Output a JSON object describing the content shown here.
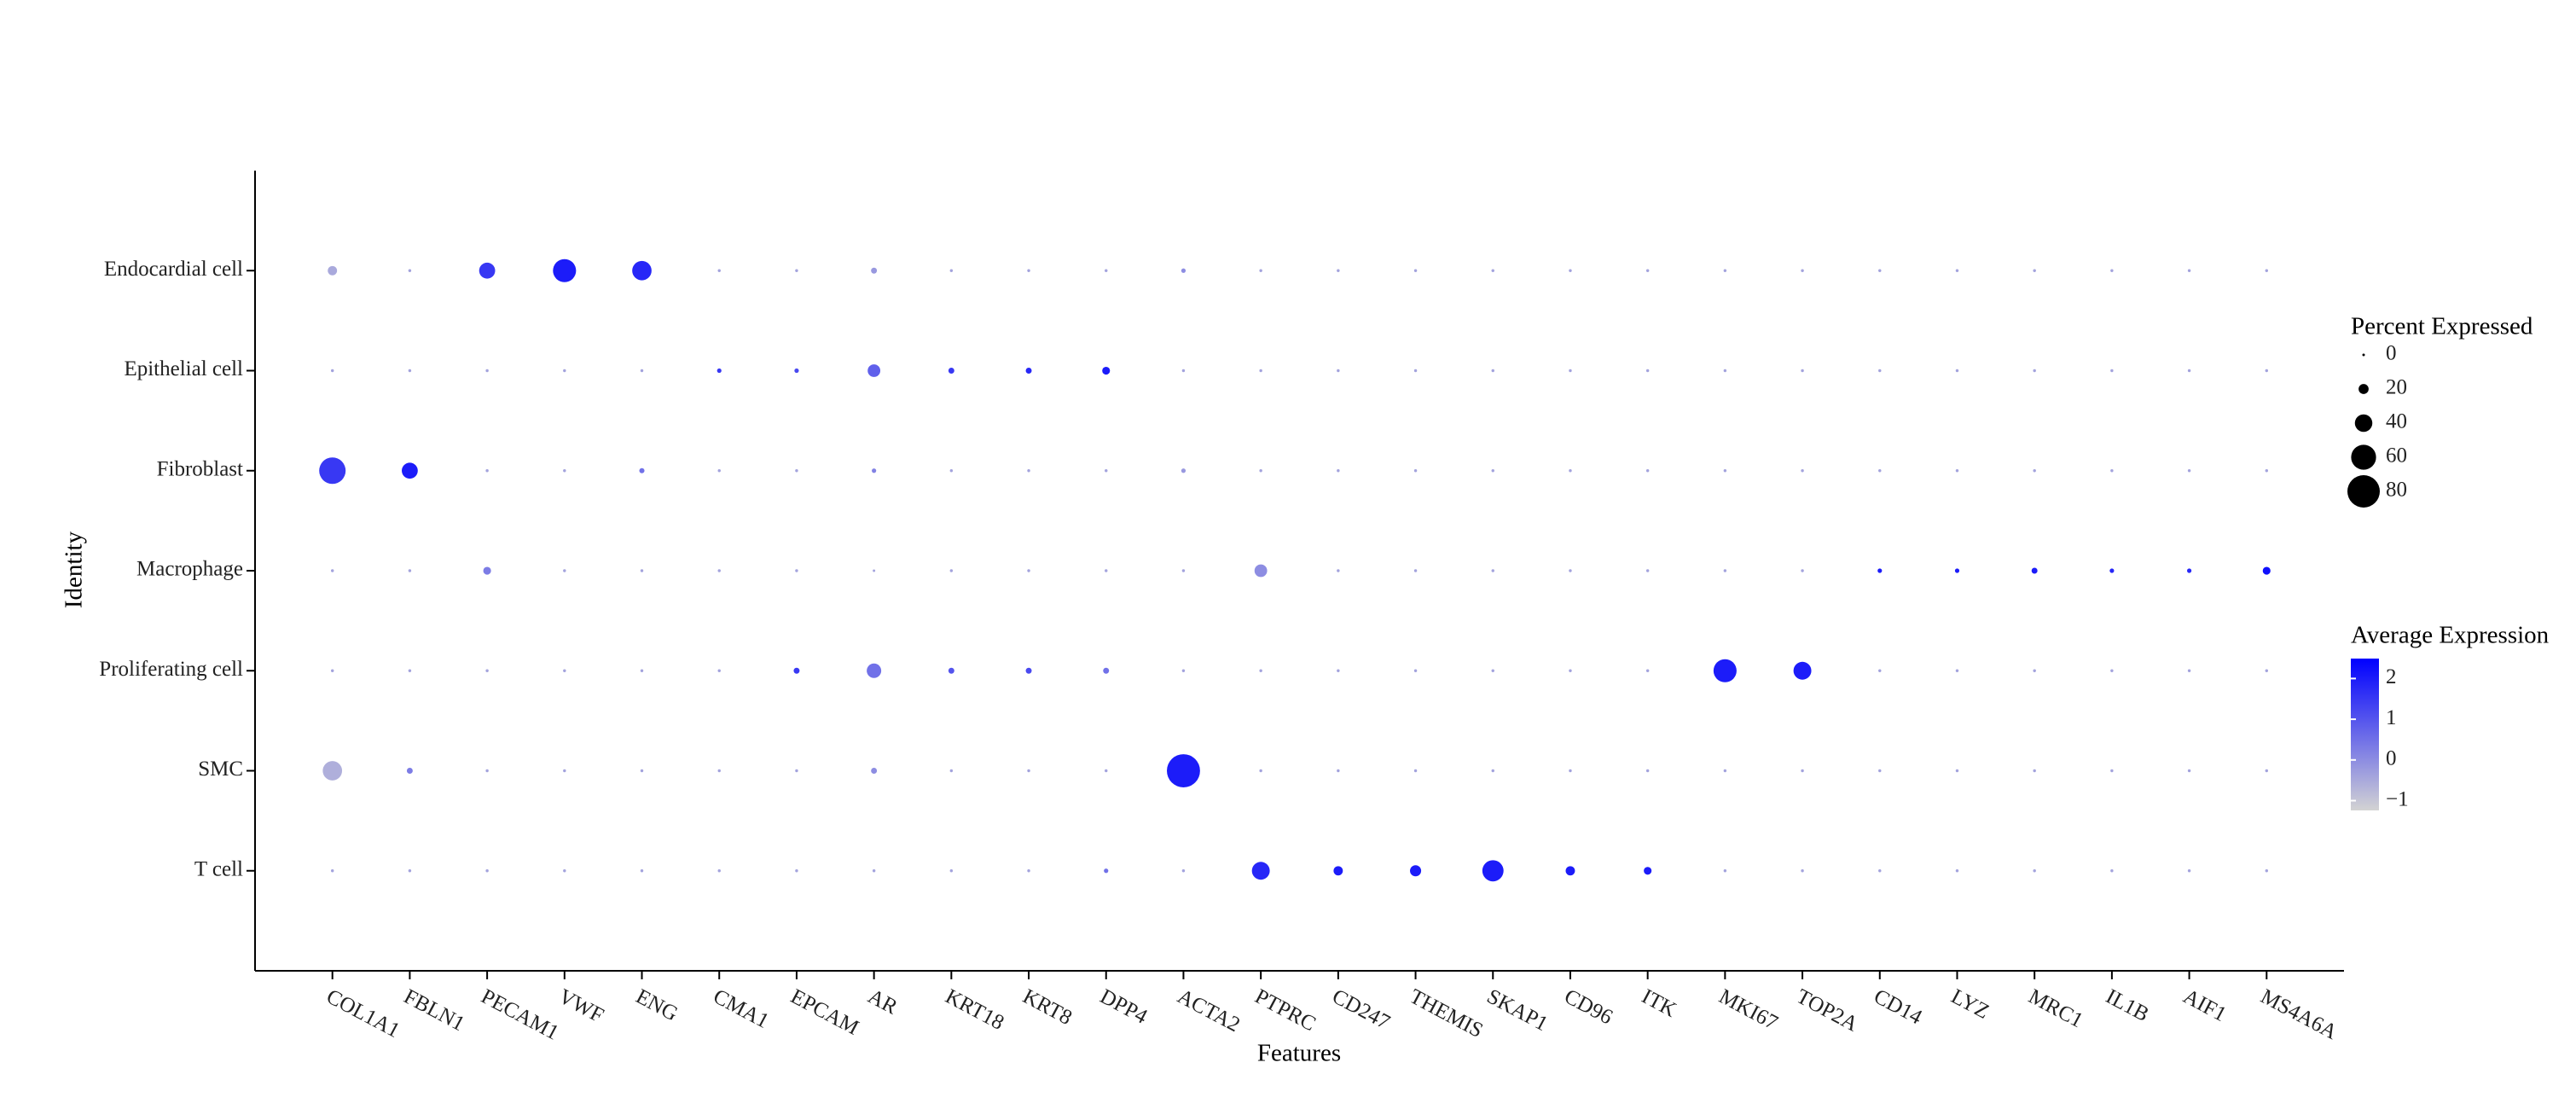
{
  "chart_data": {
    "type": "dot",
    "x_label": "Features",
    "y_label": "Identity",
    "features": [
      "COL1A1",
      "FBLN1",
      "PECAM1",
      "VWF",
      "ENG",
      "CMA1",
      "EPCAM",
      "AR",
      "KRT18",
      "KRT8",
      "DPP4",
      "ACTA2",
      "PTPRC",
      "CD247",
      "THEMIS",
      "SKAP1",
      "CD96",
      "ITK",
      "MKI67",
      "TOP2A",
      "CD14",
      "LYZ",
      "MRC1",
      "IL1B",
      "AIF1",
      "MS4A6A"
    ],
    "identities": [
      "Endocardial cell",
      "Epithelial cell",
      "Fibroblast",
      "Macrophage",
      "Proliferating cell",
      "SMC",
      "T cell"
    ],
    "percent_expressed": [
      [
        18,
        1,
        36,
        55,
        45,
        1,
        1,
        9,
        1,
        1,
        1,
        5,
        1,
        1,
        1,
        1,
        1,
        1,
        1,
        1,
        1,
        1,
        1,
        1,
        1,
        1
      ],
      [
        1,
        1,
        1,
        1,
        1,
        5,
        5,
        27,
        9,
        9,
        14,
        1,
        1,
        1,
        1,
        1,
        1,
        1,
        1,
        1,
        1,
        1,
        1,
        1,
        1,
        1
      ],
      [
        64,
        36,
        1,
        1,
        7,
        1,
        1,
        5,
        1,
        1,
        1,
        5,
        1,
        1,
        1,
        1,
        1,
        1,
        1,
        1,
        1,
        1,
        1,
        1,
        1,
        1
      ],
      [
        1,
        1,
        14,
        1,
        1,
        1,
        1,
        0,
        1,
        1,
        1,
        1,
        27,
        1,
        1,
        1,
        1,
        1,
        1,
        1,
        5,
        5,
        9,
        5,
        5,
        14
      ],
      [
        1,
        1,
        1,
        1,
        1,
        1,
        9,
        32,
        9,
        9,
        9,
        1,
        1,
        1,
        1,
        1,
        1,
        1,
        55,
        41,
        1,
        1,
        1,
        1,
        1,
        1
      ],
      [
        45,
        9,
        1,
        1,
        1,
        1,
        1,
        9,
        1,
        1,
        1,
        82,
        1,
        1,
        1,
        1,
        1,
        1,
        1,
        1,
        1,
        1,
        1,
        1,
        1,
        1
      ],
      [
        1,
        1,
        1,
        1,
        1,
        1,
        1,
        1,
        1,
        1,
        5,
        1,
        41,
        18,
        23,
        50,
        18,
        14,
        1,
        1,
        1,
        1,
        1,
        1,
        1,
        1
      ]
    ],
    "average_expression": [
      [
        -0.5,
        -0.4,
        1.5,
        2,
        1.8,
        -0.4,
        -0.4,
        -0.2,
        -0.4,
        -0.4,
        -0.4,
        0,
        -0.4,
        -0.4,
        -0.4,
        -0.4,
        -0.4,
        -0.4,
        -0.4,
        -0.4,
        -0.4,
        -0.4,
        -0.4,
        -0.4,
        -0.4,
        -0.4
      ],
      [
        -0.4,
        -0.4,
        -0.4,
        -0.4,
        -0.4,
        1.5,
        1.2,
        0.8,
        1.5,
        1.8,
        2,
        -0.4,
        -0.4,
        -0.4,
        -0.4,
        -0.4,
        -0.4,
        -0.4,
        -0.4,
        -0.4,
        -0.4,
        -0.4,
        -0.4,
        -0.4,
        -0.4,
        -0.4
      ],
      [
        1.5,
        2,
        -0.4,
        -0.4,
        0.5,
        -0.4,
        -0.4,
        0.2,
        -0.4,
        -0.4,
        -0.4,
        -0.2,
        -0.4,
        -0.4,
        -0.4,
        -0.4,
        -0.4,
        -0.4,
        -0.4,
        -0.4,
        -0.4,
        -0.4,
        -0.4,
        -0.4,
        -0.4,
        -0.4
      ],
      [
        -0.4,
        -0.4,
        0.3,
        -0.4,
        -0.4,
        -0.4,
        -0.4,
        -0.4,
        -0.4,
        -0.4,
        -0.4,
        -0.4,
        0,
        -0.4,
        -0.4,
        -0.4,
        -0.4,
        -0.4,
        -0.4,
        -0.4,
        2,
        2,
        2,
        1.8,
        1.8,
        2.2
      ],
      [
        -0.4,
        -0.4,
        -0.4,
        -0.4,
        -0.4,
        -0.4,
        1.5,
        0.5,
        1,
        1.2,
        0.5,
        -0.4,
        -0.4,
        -0.4,
        -0.4,
        -0.4,
        -0.4,
        -0.4,
        2,
        2,
        -0.4,
        -0.4,
        -0.4,
        -0.4,
        -0.4,
        -0.4
      ],
      [
        -0.6,
        0.3,
        -0.4,
        -0.4,
        -0.4,
        -0.4,
        -0.4,
        0,
        -0.4,
        -0.4,
        -0.4,
        2,
        -0.4,
        -0.4,
        -0.4,
        -0.4,
        -0.4,
        -0.4,
        -0.4,
        -0.4,
        -0.4,
        -0.4,
        -0.4,
        -0.4,
        -0.4,
        -0.4
      ],
      [
        -0.4,
        -0.4,
        -0.4,
        -0.4,
        -0.4,
        -0.4,
        -0.4,
        -0.4,
        -0.4,
        -0.4,
        0.5,
        -0.4,
        1.8,
        2,
        2,
        2,
        2,
        2,
        -0.4,
        -0.4,
        -0.4,
        -0.4,
        -0.4,
        -0.4,
        -0.4,
        -0.4
      ]
    ],
    "size_legend_title": "Percent Expressed",
    "size_ticks": [
      0,
      20,
      40,
      60,
      80
    ],
    "color_legend_title": "Average Expression",
    "color_lim": [
      -1.24,
      2.49
    ],
    "color_ticks": [
      {
        "value": -1,
        "label": "−1"
      },
      0,
      1,
      2
    ],
    "low_color": "#d3d3d3",
    "high_color": "#0000ff"
  }
}
